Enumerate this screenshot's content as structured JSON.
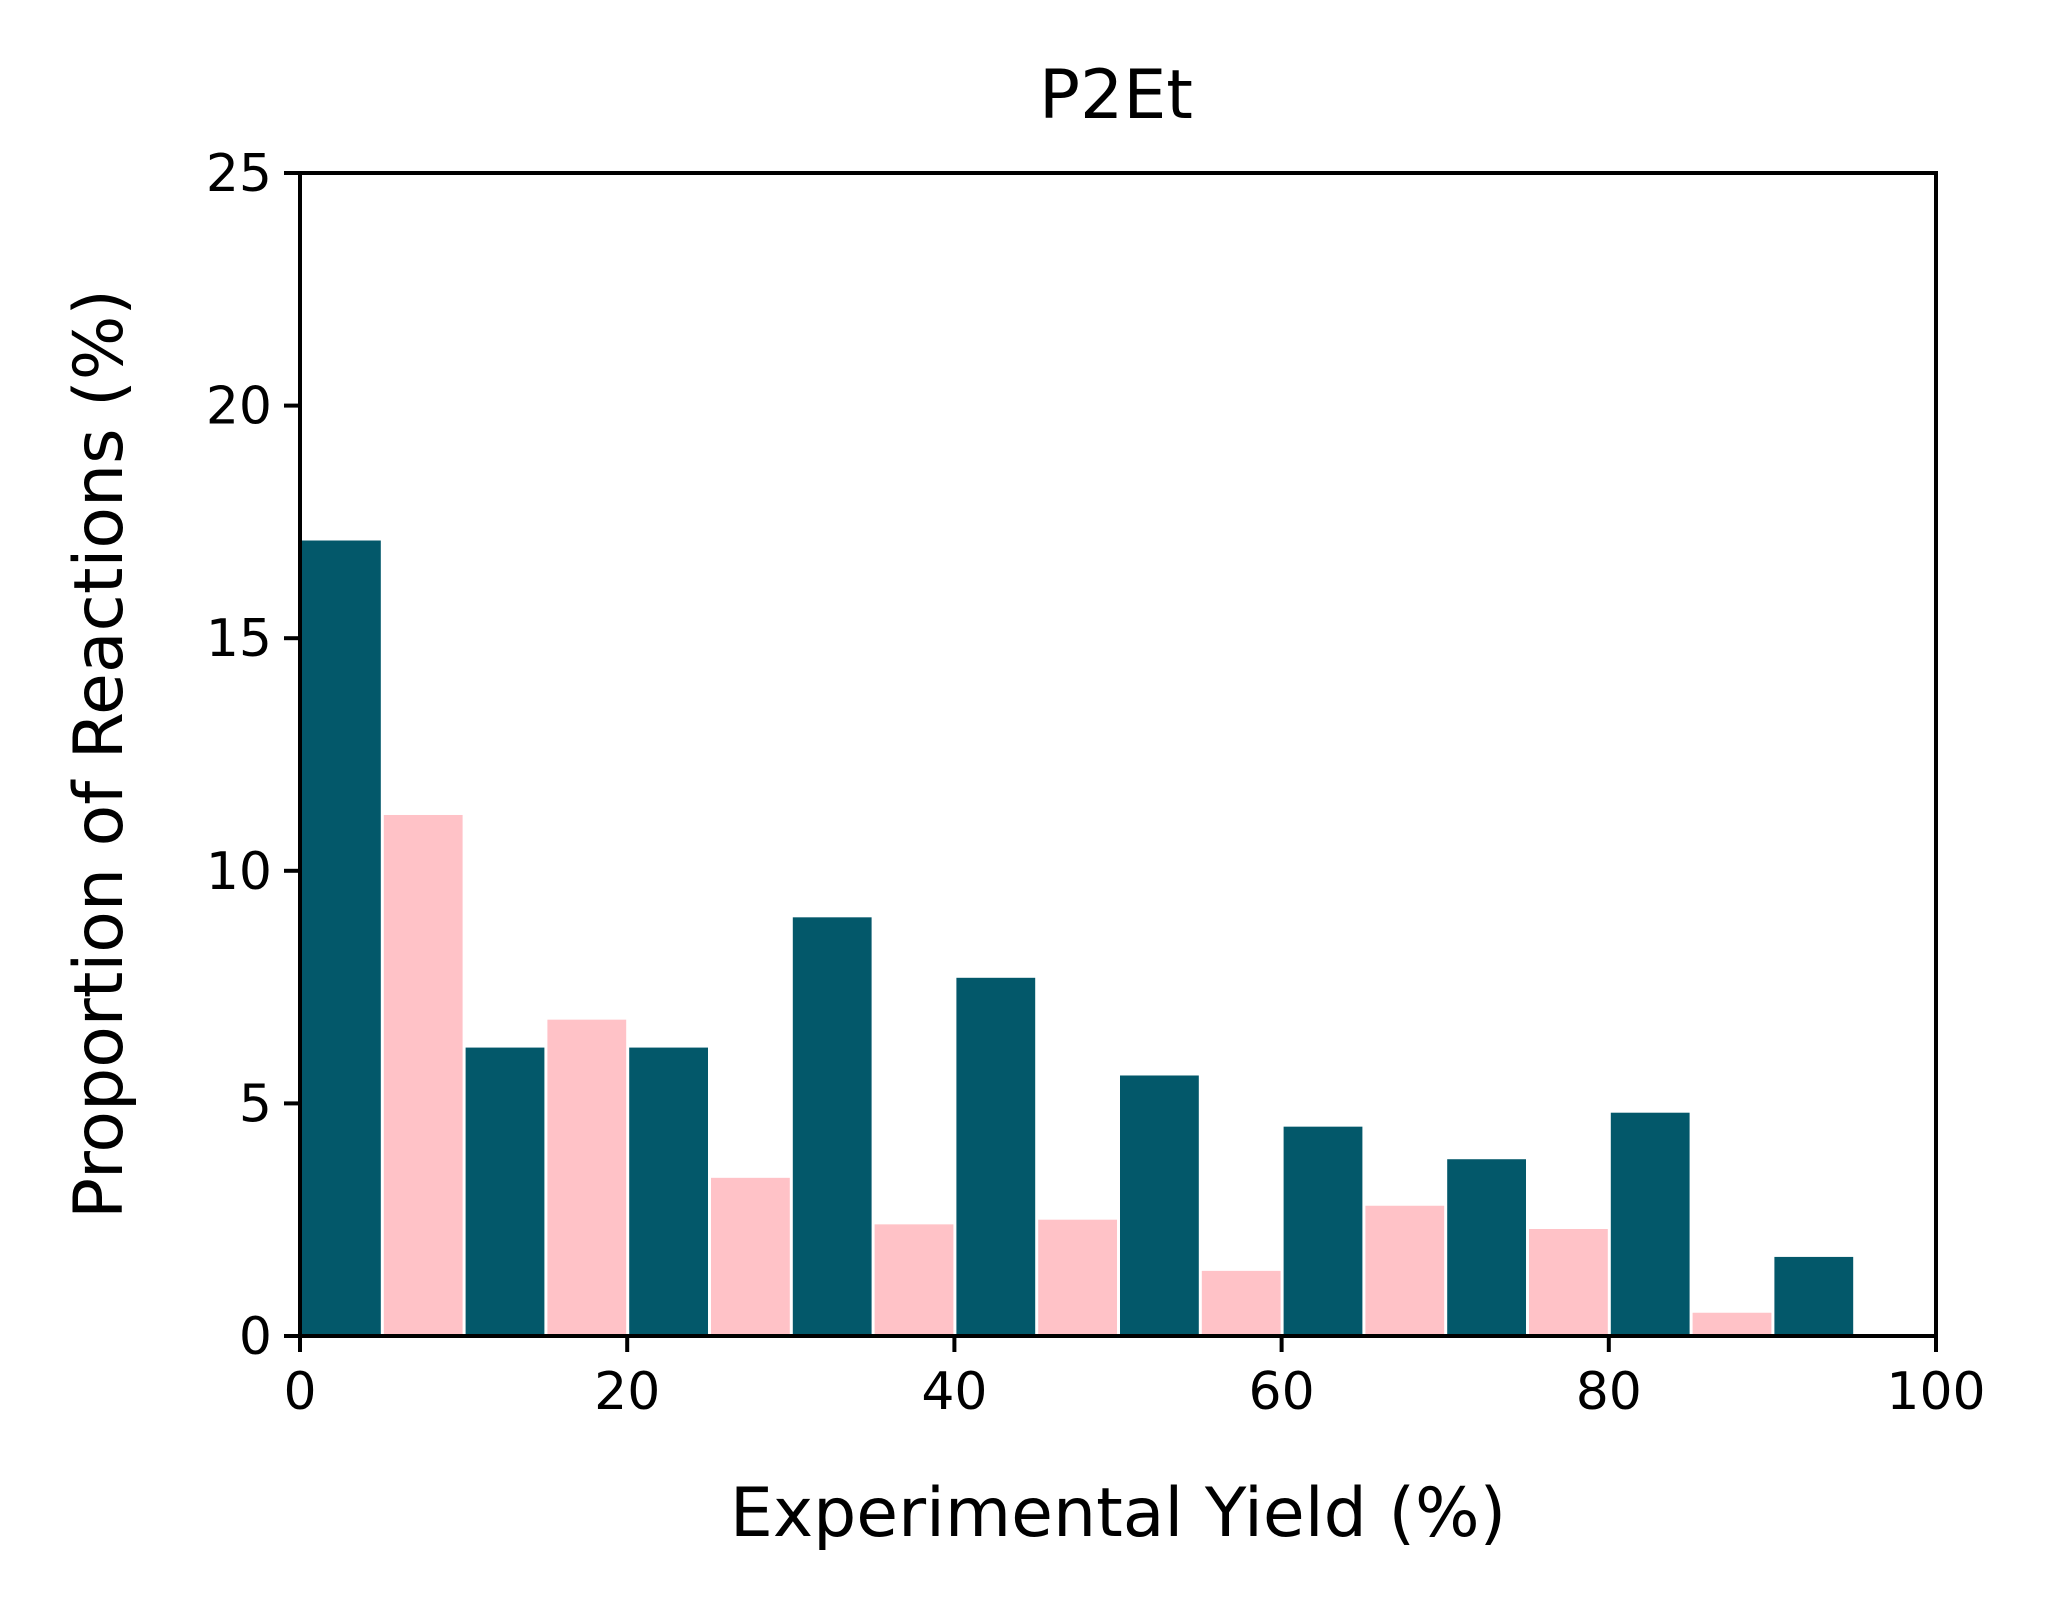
{
  "chart_data": {
    "type": "bar",
    "title": "P2Et",
    "xlabel": "Experimental Yield (%)",
    "ylabel": "Proportion of Reactions (%)",
    "xlim": [
      0,
      100
    ],
    "ylim": [
      0,
      25
    ],
    "xticks": [
      0,
      20,
      40,
      60,
      80,
      100
    ],
    "yticks": [
      0,
      5,
      10,
      15,
      20,
      25
    ],
    "bin_edges": [
      0,
      10,
      20,
      30,
      40,
      50,
      60,
      70,
      80,
      90,
      100
    ],
    "series": [
      {
        "color": "#03586a",
        "offset": "left",
        "values": [
          17.1,
          6.2,
          6.2,
          9.0,
          7.7,
          5.6,
          4.5,
          3.8,
          4.8,
          1.7
        ]
      },
      {
        "color": "#ffc2c7",
        "offset": "right",
        "values": [
          11.2,
          6.8,
          3.4,
          2.4,
          2.5,
          1.4,
          2.8,
          2.3,
          0.5,
          0.0
        ]
      }
    ],
    "grid": false,
    "legend": false
  }
}
